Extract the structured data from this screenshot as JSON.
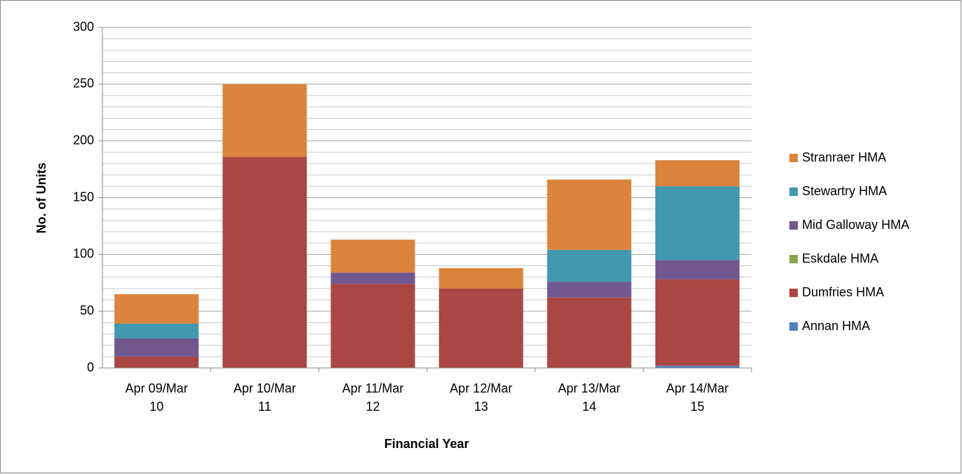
{
  "chart_data": {
    "type": "stacked_bar",
    "x_label": "Financial Year",
    "y_label": "No. of Units",
    "categories": [
      "Apr 09/Mar 10",
      "Apr 10/Mar 11",
      "Apr 11/Mar 12",
      "Apr 12/Mar 13",
      "Apr 13/Mar 14",
      "Apr 14/Mar 15"
    ],
    "series": [
      {
        "name": "Annan HMA",
        "color": "#4f81bd",
        "values": [
          0,
          0,
          0,
          0,
          0,
          2
        ]
      },
      {
        "name": "Dumfries HMA",
        "color": "#aa4643",
        "values": [
          10,
          186,
          74,
          70,
          62,
          76
        ]
      },
      {
        "name": "Eskdale HMA",
        "color": "#89a54e",
        "values": [
          0,
          0,
          0,
          0,
          0,
          0
        ]
      },
      {
        "name": "Mid Galloway HMA",
        "color": "#71588f",
        "values": [
          16,
          0,
          10,
          0,
          14,
          17
        ]
      },
      {
        "name": "Stewartry HMA",
        "color": "#4198af",
        "values": [
          13,
          0,
          0,
          0,
          28,
          65
        ]
      },
      {
        "name": "Stranraer HMA",
        "color": "#db843d",
        "values": [
          26,
          64,
          29,
          18,
          62,
          23
        ]
      }
    ],
    "ylim": [
      0,
      300
    ],
    "yticks": [
      0,
      50,
      100,
      150,
      200,
      250,
      300
    ],
    "yminorticks": [
      10,
      20,
      30,
      40,
      60,
      70,
      80,
      90,
      110,
      120,
      130,
      140,
      160,
      170,
      180,
      190,
      210,
      220,
      230,
      240,
      260,
      270,
      280,
      290
    ],
    "grid": true,
    "legend": "right"
  }
}
